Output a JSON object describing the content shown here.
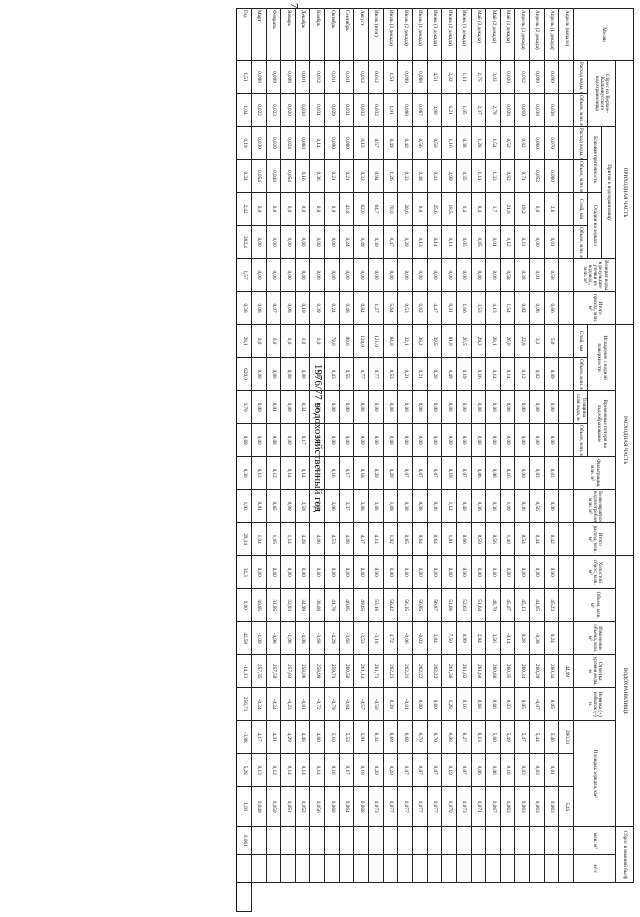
{
  "page_number": "7",
  "title": "1976/77 водохозяйственный год",
  "sections": {
    "prihod": "ПРИХОДНАЯ ЧАСТЬ",
    "rashod": "РАСХОДНАЯ ЧАСТЬ",
    "vodohranilishche": "ВОДОХРАНИЛИЩЕ",
    "sbros": "Сброс в нижний бьеф"
  },
  "headers": {
    "mesyac": "Месяц",
    "sbros_verhn": "Сброс из Верхне-Кальмиусского водохранилища",
    "pritok": "Приток к водохранилищу",
    "bokovaya": "Боковая приточность",
    "osadki": "Осадки на зеркало",
    "rashod_m3s": "Расход воды, м³/с",
    "obem_mln": "Объем, млн. м³",
    "sloy_mm": "Слой, мм",
    "vozvrat": "Возврат воды в результате утечки из водовод., млн. м³",
    "itogo_prihod": "Итого приход, млн. м³",
    "isparenie": "Испарение с водной поверхности",
    "vremennye": "Временные потери на льдообразование",
    "tolshchina": "Толщина слоя льда, м",
    "filtraciya": "Фильтрация, млн. м³",
    "bezvozvrat": "Безвозвратное водопотребление, млн. м³",
    "itogo_rashod": "Итого расход, млн. м³",
    "holostoy": "Холостой сброс, млн. м³",
    "obem_vdhr": "Объем, млн. м³",
    "izmenenie": "Изменение объема, млн. м³",
    "otmetka": "Отметка уровня воды, м",
    "nevyazka": "Невязка (+) избыток (-) н.",
    "ploshchad": "Площадь зеркала, км²",
    "mln_m3": "млн. м³",
    "m3s": "м³/с"
  },
  "columns_count": 29,
  "rows": [
    [
      "Апрель (начало)",
      "",
      "",
      "",
      "",
      "",
      "",
      "",
      "",
      "",
      "",
      "",
      "",
      "",
      "",
      "",
      "",
      "",
      "",
      "44,99",
      "",
      "260,31",
      "",
      "5,45",
      "",
      ""
    ],
    [
      "Апрель (1 декада)",
      "0,099",
      "0,038",
      "0,070",
      "0,060",
      "2,6",
      "0,01",
      "0,58",
      "0,66",
      "5,0",
      "0,09",
      "0,00",
      "0,00",
      "0,03",
      "0,36",
      "0,42",
      "0,00",
      "45,23",
      "0,24",
      "260,34",
      "0,05",
      "5,46",
      "0,01",
      "0,063",
      "",
      ""
    ],
    [
      "Апрель (2 декада)",
      "0,099",
      "0,038",
      "0,060",
      "0,052",
      "0,0",
      "0,00",
      "0,01",
      "0,06",
      "3,3",
      "0,02",
      "0,00",
      "0,00",
      "0,03",
      "0,56",
      "0,44",
      "0,00",
      "44,85",
      "-0,38",
      "260,29",
      "-0,07",
      "5,44",
      "0,03",
      "0,063",
      "",
      ""
    ],
    [
      "Апрель (3 декада)",
      "0,012",
      "0,010",
      "0,82",
      "0,71",
      "19,2",
      "0,11",
      "0,38",
      "0,82",
      "22,8",
      "0,12",
      "0,00",
      "0,00",
      "0,00",
      "0,36",
      "0,54",
      "0,00",
      "45,13",
      "0,28",
      "260,34",
      "0,05",
      "5,47",
      "0,03",
      "0,063",
      "",
      ""
    ],
    [
      "Май (1 декада)",
      "0,020",
      "0,028",
      "0,52",
      "0,82",
      "21,8",
      "0,12",
      "0,58",
      "1,54",
      "26,0",
      "0,14",
      "0,00",
      "0,00",
      "0,16",
      "1,09",
      "1,40",
      "0,00",
      "45,07",
      "-0,14",
      "260,35",
      "0,03",
      "5,49",
      "0,16",
      "0,063",
      "",
      ""
    ],
    [
      "Май (2 декада)",
      "3,02",
      "2,79",
      "1,54",
      "1,33",
      "1,7",
      "0,01",
      "0,00",
      "4,13",
      "28,1",
      "0,14",
      "0,00",
      "0,00",
      "0,06",
      "0,36",
      "0,56",
      "0,00",
      "48,70",
      "3,56",
      "260,88",
      "0,66",
      "5,80",
      "0,06",
      "0,067",
      "",
      ""
    ],
    [
      "Май (3 декада)",
      "2,75",
      "2,37",
      "1,28",
      "1,11",
      "8,4",
      "0,05",
      "0,00",
      "3,53",
      "29,3",
      "0,16",
      "0,00",
      "0,00",
      "0,06",
      "0,36",
      "0,59",
      "0,00",
      "51,64",
      "2,94",
      "261,60",
      "0,68",
      "6,13",
      "0,06",
      "0,071",
      "",
      ""
    ],
    [
      "Июнь (1 декада)",
      "1,11",
      "1,05",
      "0,38",
      "0,35",
      "0,4",
      "0,05",
      "0,00",
      "1,66",
      "26,5",
      "0,19",
      "0,00",
      "0,00",
      "0,07",
      "0,40",
      "0,66",
      "0,00",
      "52,63",
      "0,99",
      "261,62",
      "0,16",
      "6,27",
      "0,07",
      "0,073",
      "",
      ""
    ],
    [
      "Июнь (2 декада)",
      "2,32",
      "6,21",
      "1,16",
      "2,99",
      "18,5",
      "0,11",
      "0,00",
      "9,31",
      "81,0",
      "0,49",
      "0,00",
      "0,00",
      "0,19",
      "1,12",
      "1,81",
      "0,00",
      "51,06",
      "7,50",
      "261,36",
      "1,28",
      "6,08",
      "0,19",
      "0,070",
      "",
      ""
    ],
    [
      "Июнь (3 декада)",
      "4,51",
      "3,90",
      "0,50",
      "0,43",
      "25,6",
      "0,14",
      "0,00",
      "4,47",
      "39,5",
      "0,20",
      "0,00",
      "0,00",
      "0,07",
      "0,36",
      "0,64",
      "0,00",
      "56,87",
      "3,84",
      "262,22",
      "0,60",
      "6,70",
      "0,07",
      "0,077",
      "",
      ""
    ],
    [
      "Июль (1 декада)",
      "0,088",
      "0,067",
      "0,56",
      "0,48",
      "0,0",
      "0,13",
      "0,00",
      "0,62",
      "38,2",
      "0,21",
      "0,00",
      "0,00",
      "0,07",
      "0,38",
      "0,64",
      "0,00",
      "56,85",
      "-0,02",
      "262,22",
      "0,00",
      "6,70",
      "0,07",
      "0,077",
      "",
      ""
    ],
    [
      "Июль (2 декада)",
      "0,099",
      "0,088",
      "0,40",
      "0,33",
      "20,6",
      "0,20",
      "0,00",
      "0,53",
      "32,1",
      "0,21",
      "0,00",
      "0,00",
      "0,07",
      "0,38",
      "0,65",
      "0,00",
      "56,35",
      "-0,06",
      "262,21",
      "-0,01",
      "6,69",
      "0,07",
      "0,077",
      "",
      ""
    ],
    [
      "Июль (3 декада)",
      "1,51",
      "1,91",
      "0,49",
      "1,26",
      "70,0",
      "0,47",
      "0,00",
      "5,64",
      "94,0",
      "0,53",
      "0,00",
      "0,00",
      "0,20",
      "1,09",
      "1,92",
      "0,00",
      "56,42",
      "3,72",
      "262,23",
      "0,39",
      "6,69",
      "0,20",
      "0,077",
      "",
      ""
    ],
    [
      "Июль (итог)",
      "0,012",
      "0,032",
      "0,57",
      "0,94",
      "64,7",
      "0,30",
      "0,00",
      "1,27",
      "121,0",
      "0,77",
      "0,00",
      "0,00",
      "0,20",
      "3,08",
      "4,14",
      "0,00",
      "53,18",
      "-3,18",
      "261,71",
      "-0,50",
      "6,34",
      "0,20",
      "0,073",
      "",
      ""
    ],
    [
      "Август",
      "0,012",
      "0,032",
      "0,12",
      "0,32",
      "62,0",
      "0,49",
      "0,00",
      "0,84",
      "120,0",
      "0,77",
      "0,00",
      "0,00",
      "0,18",
      "3,08",
      "4,37",
      "0,00",
      "49,65",
      "-3,53",
      "261,14",
      "-0,57",
      "5,91",
      "0,18",
      "0,068",
      "",
      ""
    ],
    [
      "Сентябрь",
      "0,011",
      "0,031",
      "0,080",
      "0,21",
      "43,8",
      "0,24",
      "0,00",
      "0,48",
      "99,0",
      "0,55",
      "0,00",
      "0,00",
      "0,17",
      "3,37",
      "4,08",
      "0,00",
      "46,05",
      "-3,60",
      "260,50",
      "-0,64",
      "5,53",
      "0,17",
      "0,064",
      "",
      ""
    ],
    [
      "Октябрь",
      "0,011",
      "0,029",
      "0,090",
      "0,21",
      "0,0",
      "0,00",
      "0,00",
      "0,24",
      "79,0",
      "0,43",
      "0,00",
      "0,00",
      "0,16",
      "3,96",
      "4,53",
      "0,00",
      "41,76",
      "-4,29",
      "259,71",
      "-0,79",
      "5,10",
      "0,16",
      "0,060",
      "",
      ""
    ],
    [
      "Ноябрь",
      "0,012",
      "0,031",
      "0,14",
      "0,36",
      "0,0",
      "0,00",
      "0,00",
      "0,39",
      "0,0",
      "0,00",
      "0,26",
      "0,10",
      "0,14",
      "3,84",
      "4,08",
      "0,00",
      "38,08",
      "-3,68",
      "258,99",
      "-0,72",
      "4,80",
      "0,14",
      "0,056",
      "",
      ""
    ],
    [
      "Декабрь",
      "0,011",
      "0,030",
      "0,060",
      "0,16",
      "0,0",
      "0,00",
      "0,00",
      "0,19",
      "0,0",
      "0,00",
      "0,34",
      "0,17",
      "0,14",
      "3,59",
      "4,28",
      "0,00",
      "34,99",
      "-4,08",
      "258,08",
      "-0,81",
      "4,48",
      "0,14",
      "0,052",
      "",
      ""
    ],
    [
      "Январь",
      "0,008",
      "0,020",
      "0,024",
      "0,054",
      "0,0",
      "0,00",
      "0,00",
      "0,08",
      "0,0",
      "0,00",
      "0,00",
      "0,00",
      "0,14",
      "0,99",
      "1,14",
      "0,00",
      "32,93",
      "-1,06",
      "257,83",
      "-0,23",
      "4,29",
      "0,14",
      "0,051",
      "",
      ""
    ],
    [
      "Февраль",
      "0,009",
      "0,023",
      "0,020",
      "0,048",
      "0,0",
      "0,00",
      "0,00",
      "0,07",
      "0,0",
      "0,00",
      "0,01",
      "0,08",
      "0,12",
      "0,85",
      "1,05",
      "0,00",
      "31,95",
      "-0,98",
      "257,59",
      "-0,24",
      "4,31",
      "0,12",
      "0,050",
      "",
      ""
    ],
    [
      "Март",
      "0,008",
      "0,022",
      "0,030",
      "0,054",
      "0,0",
      "0,00",
      "0,00",
      "0,08",
      "0,0",
      "0,00",
      "0,00",
      "0,00",
      "0,13",
      "0,91",
      "1,04",
      "0,00",
      "30,95",
      "-1,00",
      "257,35",
      "-0,24",
      "4,17",
      "0,13",
      "0,049",
      "",
      ""
    ],
    [
      "Год",
      "1,51",
      "1,04",
      "0,19",
      "0,24",
      "2,42",
      "282,4",
      "1,57",
      "0,38",
      "28,1",
      "620,0",
      "3,70",
      "0,69",
      "0,30",
      "1,93",
      "29,14",
      "34,3",
      "0,00",
      "42,58",
      "-14,13",
      "256,71",
      "-3,98",
      "5,28",
      "1,93",
      "0,061",
      "",
      ""
    ]
  ]
}
